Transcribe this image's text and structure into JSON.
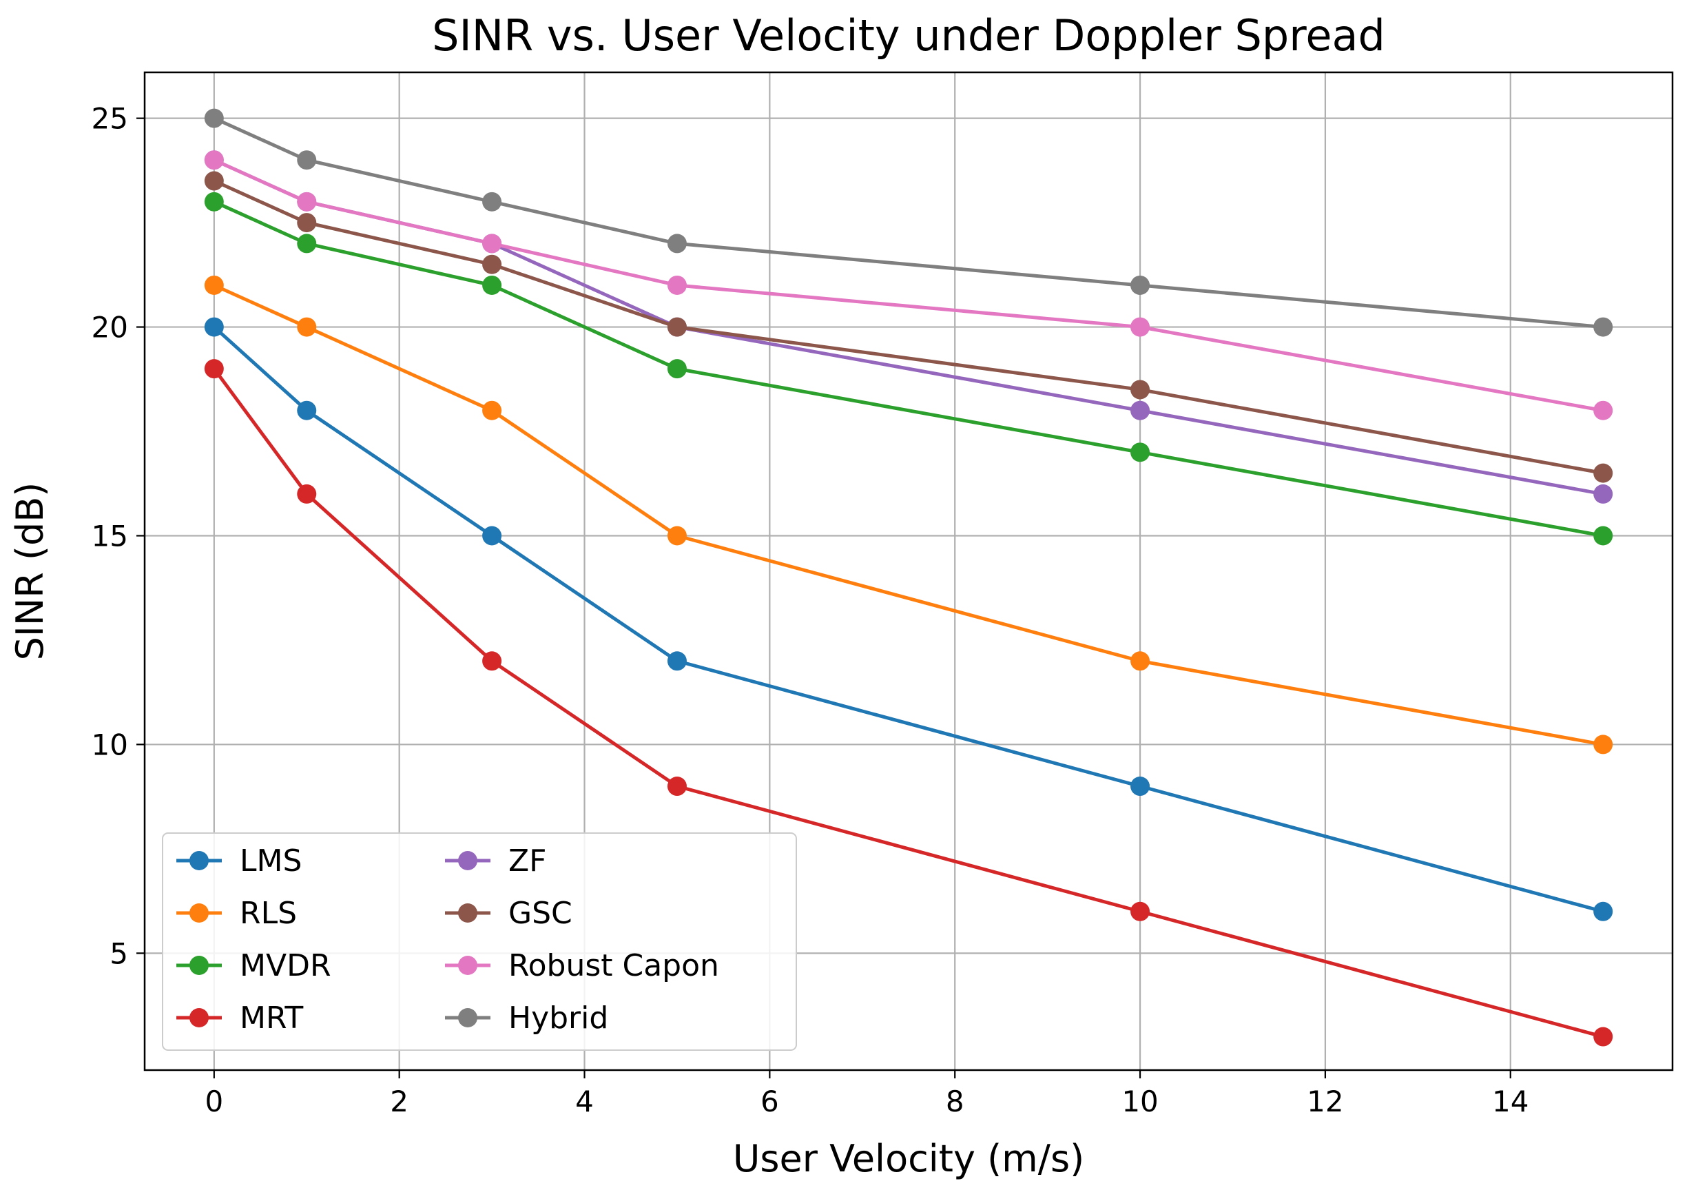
{
  "chart_data": {
    "type": "line",
    "title": "SINR vs. User Velocity under Doppler Spread",
    "xlabel": "User Velocity (m/s)",
    "ylabel": "SINR (dB)",
    "x": [
      0,
      1,
      3,
      5,
      10,
      15
    ],
    "xlim": [
      -0.75,
      15.75
    ],
    "ylim": [
      2.2,
      26.1
    ],
    "xticks": [
      0,
      2,
      4,
      6,
      8,
      10,
      12,
      14
    ],
    "yticks": [
      5,
      10,
      15,
      20,
      25
    ],
    "grid": true,
    "legend_location": "lower-left",
    "legend_columns": 2,
    "series": [
      {
        "name": "LMS",
        "color": "#1f77b4",
        "values": [
          20,
          18,
          15,
          12,
          9,
          6
        ]
      },
      {
        "name": "RLS",
        "color": "#ff7f0e",
        "values": [
          21,
          20,
          18,
          15,
          12,
          10
        ]
      },
      {
        "name": "MVDR",
        "color": "#2ca02c",
        "values": [
          23,
          22,
          21,
          19,
          17,
          15
        ]
      },
      {
        "name": "MRT",
        "color": "#d62728",
        "values": [
          19,
          16,
          12,
          9,
          6,
          3
        ]
      },
      {
        "name": "ZF",
        "color": "#9467bd",
        "values": [
          24,
          23,
          22,
          20,
          18,
          16
        ]
      },
      {
        "name": "GSC",
        "color": "#8c564b",
        "values": [
          23.5,
          22.5,
          21.5,
          20,
          18.5,
          16.5
        ]
      },
      {
        "name": "Robust Capon",
        "color": "#e377c2",
        "values": [
          24,
          23,
          22,
          21,
          20,
          18
        ]
      },
      {
        "name": "Hybrid",
        "color": "#7f7f7f",
        "values": [
          25,
          24,
          23,
          22,
          21,
          20
        ]
      }
    ]
  }
}
